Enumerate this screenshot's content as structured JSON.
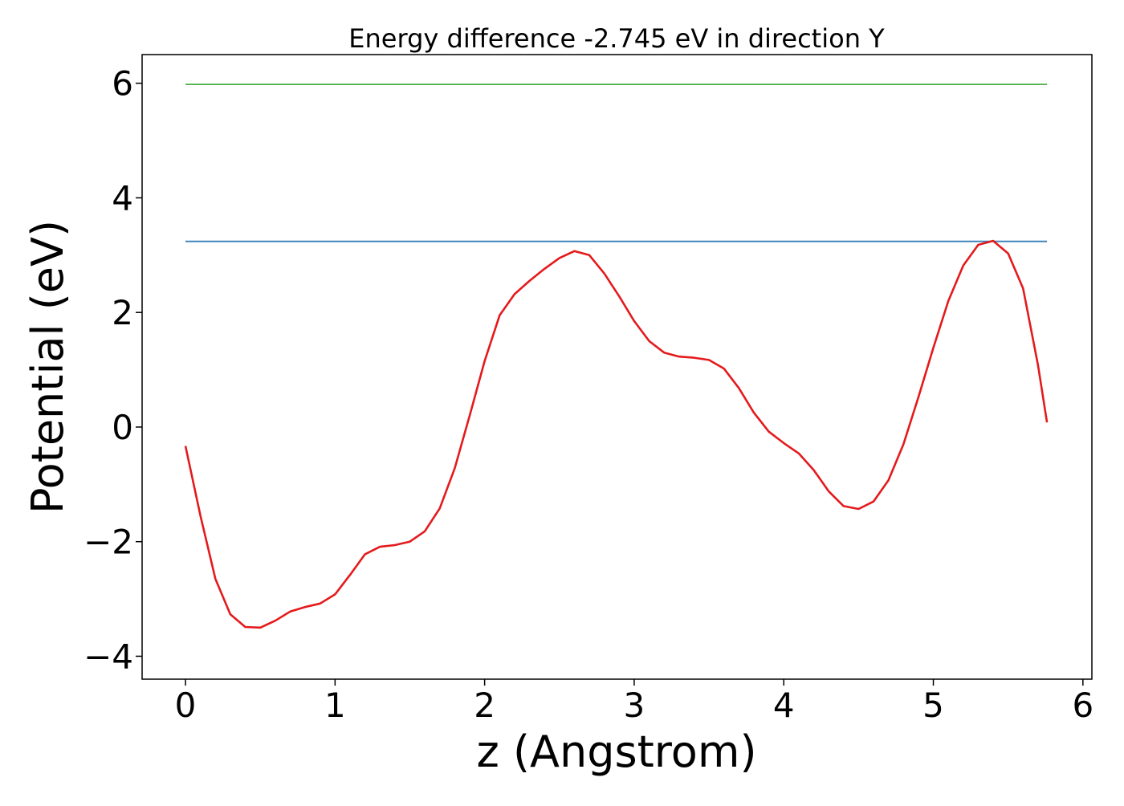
{
  "chart_data": {
    "type": "line",
    "title": "Energy difference -2.745 eV in direction Y",
    "xlabel": "z (Angstrom)",
    "ylabel": "Potential (eV)",
    "xlim": [
      -0.29,
      6.06
    ],
    "ylim": [
      -4.4,
      6.5
    ],
    "xticks": [
      0,
      1,
      2,
      3,
      4,
      5,
      6
    ],
    "xtick_labels": [
      "0",
      "1",
      "2",
      "3",
      "4",
      "5",
      "6"
    ],
    "yticks": [
      -4,
      -2,
      0,
      2,
      4,
      6
    ],
    "ytick_labels": [
      "−4",
      "−2",
      "0",
      "2",
      "4",
      "6"
    ],
    "grid": false,
    "colors": {
      "potential": "#e41a1c",
      "upper_level": "#4daf4a",
      "lower_level": "#377eb8"
    },
    "series": [
      {
        "x": [
          0,
          0.1,
          0.2,
          0.3,
          0.4,
          0.5,
          0.6,
          0.7,
          0.8,
          0.9,
          1.0,
          1.1,
          1.2,
          1.3,
          1.4,
          1.5,
          1.6,
          1.7,
          1.8,
          1.9,
          2.0,
          2.1,
          2.2,
          2.3,
          2.4,
          2.5,
          2.6,
          2.7,
          2.8,
          2.9,
          3.0,
          3.1,
          3.2,
          3.3,
          3.4,
          3.5,
          3.6,
          3.7,
          3.8,
          3.9,
          4.0,
          4.1,
          4.2,
          4.3,
          4.4,
          4.5,
          4.6,
          4.7,
          4.8,
          4.9,
          5.0,
          5.1,
          5.2,
          5.3,
          5.4,
          5.5,
          5.6,
          5.7,
          5.76
        ],
        "y": [
          -0.33,
          -1.55,
          -2.65,
          -3.27,
          -3.49,
          -3.5,
          -3.38,
          -3.22,
          -3.14,
          -3.08,
          -2.92,
          -2.58,
          -2.22,
          -2.09,
          -2.06,
          -2.0,
          -1.82,
          -1.42,
          -0.72,
          0.2,
          1.15,
          1.95,
          2.32,
          2.55,
          2.76,
          2.95,
          3.07,
          3.0,
          2.68,
          2.28,
          1.85,
          1.5,
          1.3,
          1.23,
          1.21,
          1.17,
          1.02,
          0.68,
          0.25,
          -0.08,
          -0.28,
          -0.46,
          -0.75,
          -1.12,
          -1.38,
          -1.43,
          -1.3,
          -0.93,
          -0.3,
          0.52,
          1.38,
          2.2,
          2.82,
          3.18,
          3.25,
          3.03,
          2.42,
          1.08,
          0.08
        ]
      },
      {
        "x": [
          0,
          5.76
        ],
        "y": [
          5.98,
          5.98
        ]
      },
      {
        "x": [
          0,
          5.76
        ],
        "y": [
          3.24,
          3.24
        ]
      }
    ]
  }
}
